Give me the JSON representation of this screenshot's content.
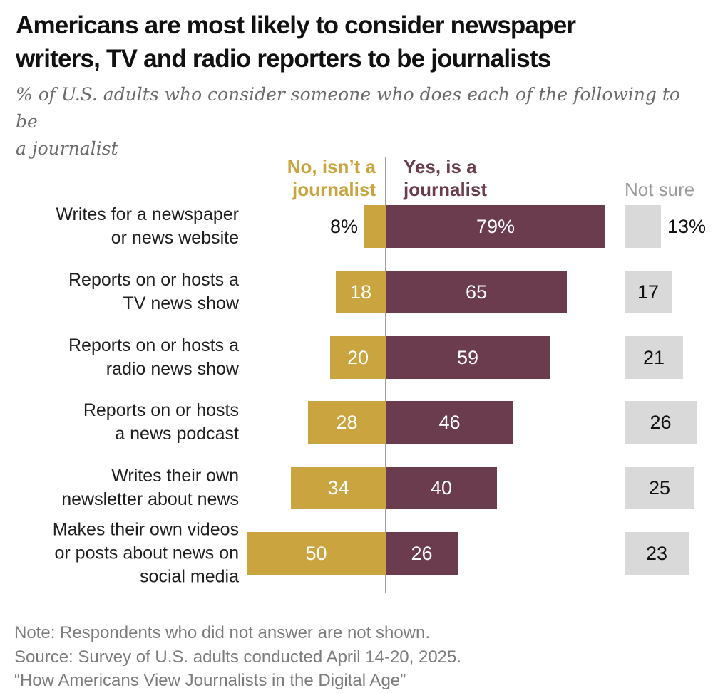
{
  "header": {
    "title_line1": "Americans are most likely to consider newspaper",
    "title_line2": "writers, TV and radio reporters to be journalists",
    "subtitle_line1": "% of U.S. adults who consider someone who does each of the following to be",
    "subtitle_line2": "a journalist"
  },
  "colors": {
    "no_bar": "#C9A43F",
    "no_header_text": "#C9A43F",
    "yes_bar": "#6B3C4E",
    "yes_header_text": "#6B3C4E",
    "not_sure_box": "#D9D9D9",
    "not_sure_header_text": "#9B9B9B",
    "axis_line": "#9E9E9E"
  },
  "chart_data": {
    "type": "bar",
    "orientation": "horizontal-diverging",
    "title": "Americans are most likely to consider newspaper writers, TV and radio reporters to be journalists",
    "subtitle": "% of U.S. adults who consider someone who does each of the following to be a journalist",
    "unit": "percent",
    "legend": {
      "no_line1": "No, isn’t a",
      "no_line2": "journalist",
      "yes_line1": "Yes, is a",
      "yes_line2": "journalist",
      "not_sure": "Not sure"
    },
    "series_names": [
      "No, isn’t a journalist",
      "Yes, is a journalist",
      "Not sure"
    ],
    "rows": [
      {
        "label_lines": [
          "Writes for a newspaper",
          "or news website"
        ],
        "no": 8,
        "no_text": "8%",
        "no_label_outside": true,
        "yes": 79,
        "yes_text": "79%",
        "not_sure": 13,
        "not_sure_text": "13%",
        "not_sure_label_outside": true
      },
      {
        "label_lines": [
          "Reports on or hosts a",
          "TV news show"
        ],
        "no": 18,
        "no_text": "18",
        "yes": 65,
        "yes_text": "65",
        "not_sure": 17,
        "not_sure_text": "17"
      },
      {
        "label_lines": [
          "Reports on or hosts a",
          "radio news show"
        ],
        "no": 20,
        "no_text": "20",
        "yes": 59,
        "yes_text": "59",
        "not_sure": 21,
        "not_sure_text": "21"
      },
      {
        "label_lines": [
          "Reports on or hosts",
          "a news podcast"
        ],
        "no": 28,
        "no_text": "28",
        "yes": 46,
        "yes_text": "46",
        "not_sure": 26,
        "not_sure_text": "26"
      },
      {
        "label_lines": [
          "Writes their own",
          "newsletter about news"
        ],
        "no": 34,
        "no_text": "34",
        "yes": 40,
        "yes_text": "40",
        "not_sure": 25,
        "not_sure_text": "25"
      },
      {
        "label_lines": [
          "Makes their own videos",
          "or posts about news on",
          "social media"
        ],
        "no": 50,
        "no_text": "50",
        "yes": 26,
        "yes_text": "26",
        "not_sure": 23,
        "not_sure_text": "23"
      }
    ]
  },
  "footer": {
    "note": "Note: Respondents who did not answer are not shown.",
    "source": "Source: Survey of U.S. adults conducted April 14-20, 2025.",
    "quote": "“How Americans View Journalists in the Digital Age”"
  }
}
